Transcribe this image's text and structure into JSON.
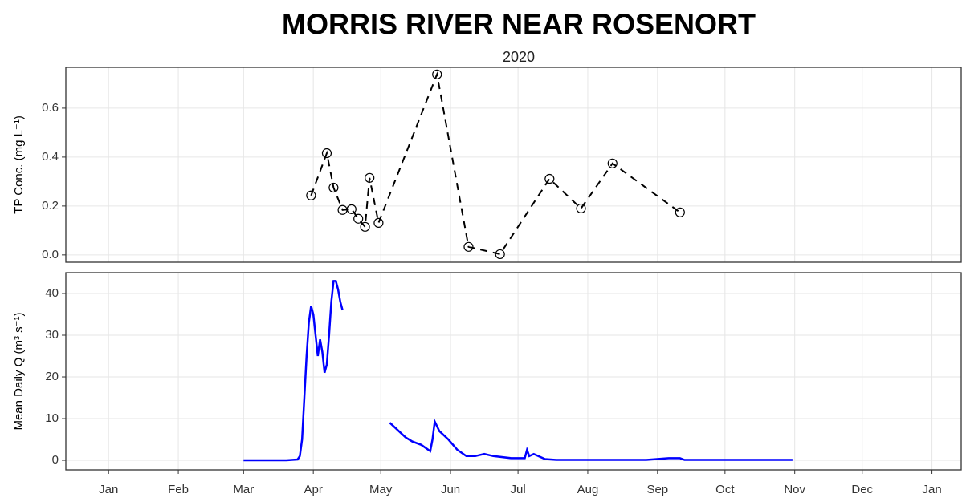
{
  "chart_data": [
    {
      "type": "line",
      "title": "MORRIS RIVER NEAR ROSENORT",
      "subtitle": "2020",
      "ylabel": "TP Conc. (mg L⁻¹)",
      "x": [
        91,
        98,
        101,
        105,
        109,
        112,
        115,
        117,
        121,
        147,
        161,
        175,
        197,
        211,
        225,
        255
      ],
      "values": [
        0.243,
        0.416,
        0.275,
        0.184,
        0.187,
        0.148,
        0.115,
        0.315,
        0.131,
        0.738,
        0.033,
        0.003,
        0.311,
        0.19,
        0.374,
        0.174
      ],
      "color": "#000000",
      "linestyle": "dashed",
      "markers": true,
      "ylim": [
        -0.03,
        0.767
      ],
      "yticks": [
        {
          "value": 0,
          "label": "0.0"
        },
        0.2,
        0.4,
        0.6
      ],
      "grid": true
    },
    {
      "type": "line",
      "ylabel": "Mean Daily Q (m³ s⁻¹)",
      "x": [
        61,
        70,
        80,
        85,
        86,
        87,
        88,
        89,
        90,
        91,
        92,
        93,
        94,
        95,
        96,
        97,
        98,
        99,
        100,
        101,
        102,
        103,
        104,
        105,
        null,
        126,
        130,
        133,
        136,
        140,
        144,
        145,
        146,
        148,
        152,
        156,
        160,
        164,
        168,
        172,
        180,
        186,
        187,
        188,
        190,
        192,
        195,
        200,
        220,
        240,
        250,
        255,
        257,
        280,
        305
      ],
      "values": [
        0,
        0,
        0,
        0.2,
        1,
        5,
        15,
        25,
        33,
        37,
        35,
        30,
        25,
        29,
        26,
        21,
        23,
        30,
        38,
        43,
        43,
        41,
        38,
        36,
        null,
        9,
        7,
        5.5,
        4.5,
        3.7,
        2.2,
        5,
        9.3,
        7,
        5,
        2.5,
        1,
        1,
        1.5,
        1,
        0.5,
        0.5,
        2.5,
        1,
        1.5,
        1,
        0.3,
        0.1,
        0.1,
        0.1,
        0.5,
        0.5,
        0.1,
        0.1,
        0.1
      ],
      "color": "#0000ff",
      "linestyle": "solid",
      "markers": false,
      "ylim": [
        -2.3,
        45
      ],
      "yticks": [
        0,
        10,
        20,
        30,
        40
      ],
      "grid": true,
      "xlim": [
        -18,
        380
      ],
      "xticks": [
        {
          "value": 1,
          "label": "Jan"
        },
        {
          "value": 32,
          "label": "Feb"
        },
        {
          "value": 61,
          "label": "Mar"
        },
        {
          "value": 92,
          "label": "Apr"
        },
        {
          "value": 122,
          "label": "May"
        },
        {
          "value": 153,
          "label": "Jun"
        },
        {
          "value": 183,
          "label": "Jul"
        },
        {
          "value": 214,
          "label": "Aug"
        },
        {
          "value": 245,
          "label": "Sep"
        },
        {
          "value": 275,
          "label": "Oct"
        },
        {
          "value": 306,
          "label": "Nov"
        },
        {
          "value": 336,
          "label": "Dec"
        },
        {
          "value": 367,
          "label": "Jan"
        }
      ]
    }
  ]
}
